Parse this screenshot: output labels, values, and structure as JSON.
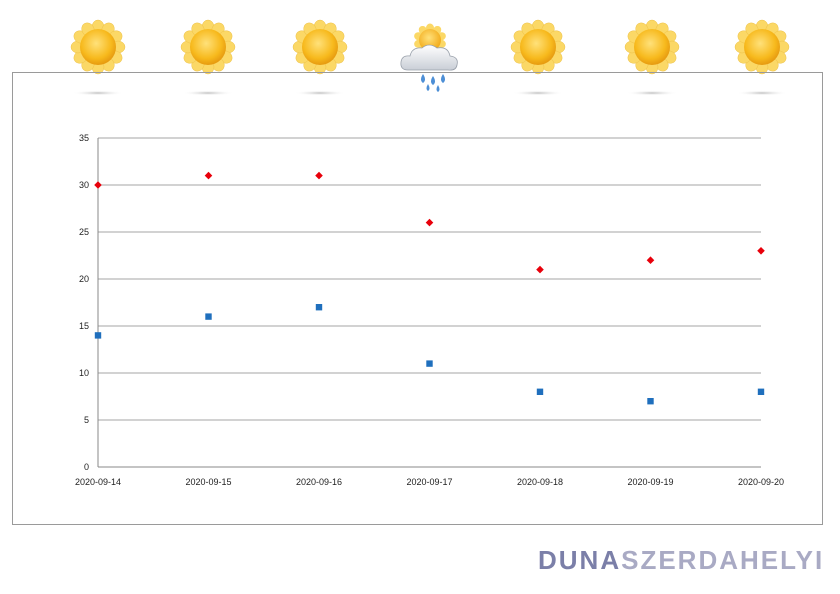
{
  "weather_icons": [
    {
      "date": "2020-09-14",
      "icon": "sun-icon"
    },
    {
      "date": "2020-09-15",
      "icon": "sun-icon"
    },
    {
      "date": "2020-09-16",
      "icon": "sun-icon"
    },
    {
      "date": "2020-09-17",
      "icon": "cloud-rain-sun-icon"
    },
    {
      "date": "2020-09-18",
      "icon": "sun-icon"
    },
    {
      "date": "2020-09-19",
      "icon": "sun-icon"
    },
    {
      "date": "2020-09-20",
      "icon": "sun-icon"
    }
  ],
  "chart_data": {
    "type": "scatter",
    "x": [
      "2020-09-14",
      "2020-09-15",
      "2020-09-16",
      "2020-09-17",
      "2020-09-18",
      "2020-09-19",
      "2020-09-20"
    ],
    "series": [
      {
        "values": [
          30,
          31,
          31,
          26,
          21,
          22,
          23
        ],
        "color": "#e8000b",
        "marker": "diamond"
      },
      {
        "values": [
          14,
          16,
          17,
          11,
          8,
          7,
          8
        ],
        "color": "#1f6fbd",
        "marker": "square"
      }
    ],
    "ylim": [
      0,
      35
    ],
    "yticks": [
      0,
      5,
      10,
      15,
      20,
      25,
      30,
      35
    ],
    "grid": true,
    "title": "",
    "xlabel": "",
    "ylabel": ""
  },
  "logo": {
    "part1": "DUNA",
    "part2": "SZERDAHELYI"
  }
}
